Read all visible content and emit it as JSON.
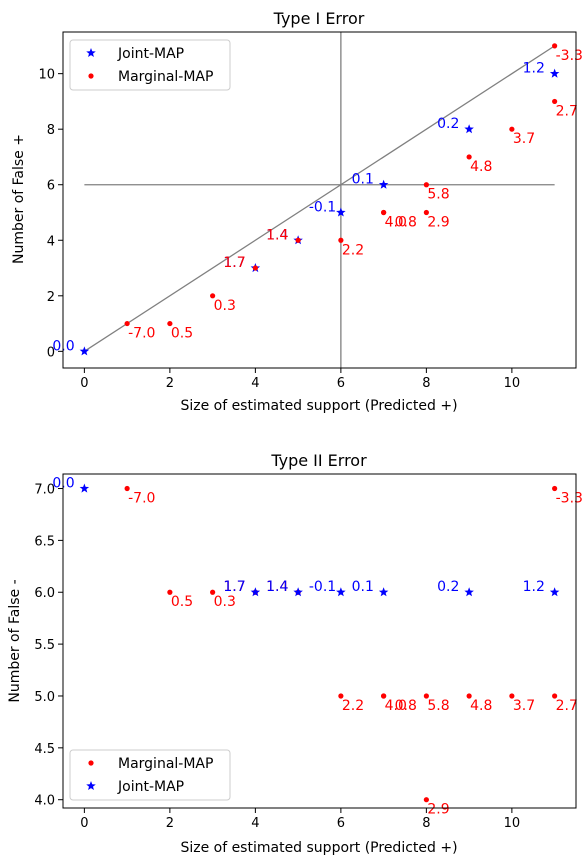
{
  "chart_data": [
    {
      "type": "scatter",
      "title": "Type I Error",
      "xlabel": "Size of estimated support (Predicted +)",
      "ylabel": "Number of False +",
      "xlim": [
        -0.5,
        11.5
      ],
      "ylim": [
        -0.6,
        11.5
      ],
      "xticks": [
        0,
        2,
        4,
        6,
        8,
        10
      ],
      "yticks": [
        0,
        2,
        4,
        6,
        8,
        10
      ],
      "grid": false,
      "legend_position": "top-left",
      "legend": [
        "Joint-MAP",
        "Marginal-MAP"
      ],
      "reference_lines": {
        "vertical_x": 6,
        "horizontal_y": 6,
        "diagonal": [
          [
            0,
            0
          ],
          [
            11,
            11
          ]
        ]
      },
      "series": [
        {
          "name": "Joint-MAP",
          "marker": "star",
          "color": "#0000ff",
          "points": [
            {
              "x": 0,
              "y": 0,
              "label": "0.0"
            },
            {
              "x": 4,
              "y": 3,
              "label": "1.7"
            },
            {
              "x": 5,
              "y": 4,
              "label": "1.4"
            },
            {
              "x": 6,
              "y": 5,
              "label": "-0.1"
            },
            {
              "x": 7,
              "y": 6,
              "label": "0.1"
            },
            {
              "x": 9,
              "y": 8,
              "label": "0.2"
            },
            {
              "x": 11,
              "y": 10,
              "label": "1.2"
            }
          ]
        },
        {
          "name": "Marginal-MAP",
          "marker": "dot",
          "color": "#ff0000",
          "points": [
            {
              "x": 1,
              "y": 1,
              "label": "-7.0"
            },
            {
              "x": 2,
              "y": 1,
              "label": "0.5"
            },
            {
              "x": 3,
              "y": 2,
              "label": "0.3"
            },
            {
              "x": 4,
              "y": 3,
              "label": "1.7"
            },
            {
              "x": 5,
              "y": 4,
              "label": "1.4"
            },
            {
              "x": 6,
              "y": 4,
              "label": "2.2"
            },
            {
              "x": 7,
              "y": 5,
              "label": "4.0"
            },
            {
              "x": 7,
              "y": 5,
              "label": "0.8"
            },
            {
              "x": 8,
              "y": 5,
              "label": "2.9"
            },
            {
              "x": 8,
              "y": 6,
              "label": "5.8"
            },
            {
              "x": 9,
              "y": 7,
              "label": "4.8"
            },
            {
              "x": 10,
              "y": 8,
              "label": "3.7"
            },
            {
              "x": 11,
              "y": 9,
              "label": "2.7"
            },
            {
              "x": 11,
              "y": 11,
              "label": "-3.3"
            }
          ]
        }
      ]
    },
    {
      "type": "scatter",
      "title": "Type II Error",
      "xlabel": "Size of estimated support (Predicted +)",
      "ylabel": "Number of False -",
      "xlim": [
        -0.5,
        11.5
      ],
      "ylim": [
        3.92,
        7.14
      ],
      "xticks": [
        0,
        2,
        4,
        6,
        8,
        10
      ],
      "yticks": [
        "4.0",
        "4.5",
        "5.0",
        "5.5",
        "6.0",
        "6.5",
        "7.0"
      ],
      "grid": false,
      "legend_position": "bottom-left",
      "legend": [
        "Marginal-MAP",
        "Joint-MAP"
      ],
      "series": [
        {
          "name": "Marginal-MAP",
          "marker": "dot",
          "color": "#ff0000",
          "points": [
            {
              "x": 1,
              "y": 7,
              "label": "-7.0"
            },
            {
              "x": 2,
              "y": 6,
              "label": "0.5"
            },
            {
              "x": 3,
              "y": 6,
              "label": "0.3"
            },
            {
              "x": 4,
              "y": 6,
              "label": "1.7"
            },
            {
              "x": 5,
              "y": 6,
              "label": "1.4"
            },
            {
              "x": 6,
              "y": 5,
              "label": "2.2"
            },
            {
              "x": 7,
              "y": 5,
              "label": "4.0"
            },
            {
              "x": 7,
              "y": 5,
              "label": "0.8"
            },
            {
              "x": 8,
              "y": 4,
              "label": "2.9"
            },
            {
              "x": 8,
              "y": 5,
              "label": "5.8"
            },
            {
              "x": 9,
              "y": 5,
              "label": "4.8"
            },
            {
              "x": 10,
              "y": 5,
              "label": "3.7"
            },
            {
              "x": 11,
              "y": 5,
              "label": "2.7"
            },
            {
              "x": 11,
              "y": 7,
              "label": "-3.3"
            }
          ]
        },
        {
          "name": "Joint-MAP",
          "marker": "star",
          "color": "#0000ff",
          "points": [
            {
              "x": 0,
              "y": 7,
              "label": "0.0"
            },
            {
              "x": 4,
              "y": 6,
              "label": "1.7"
            },
            {
              "x": 5,
              "y": 6,
              "label": "1.4"
            },
            {
              "x": 6,
              "y": 6,
              "label": "-0.1"
            },
            {
              "x": 7,
              "y": 6,
              "label": "0.1"
            },
            {
              "x": 9,
              "y": 6,
              "label": "0.2"
            },
            {
              "x": 11,
              "y": 6,
              "label": "1.2"
            }
          ]
        }
      ]
    }
  ]
}
